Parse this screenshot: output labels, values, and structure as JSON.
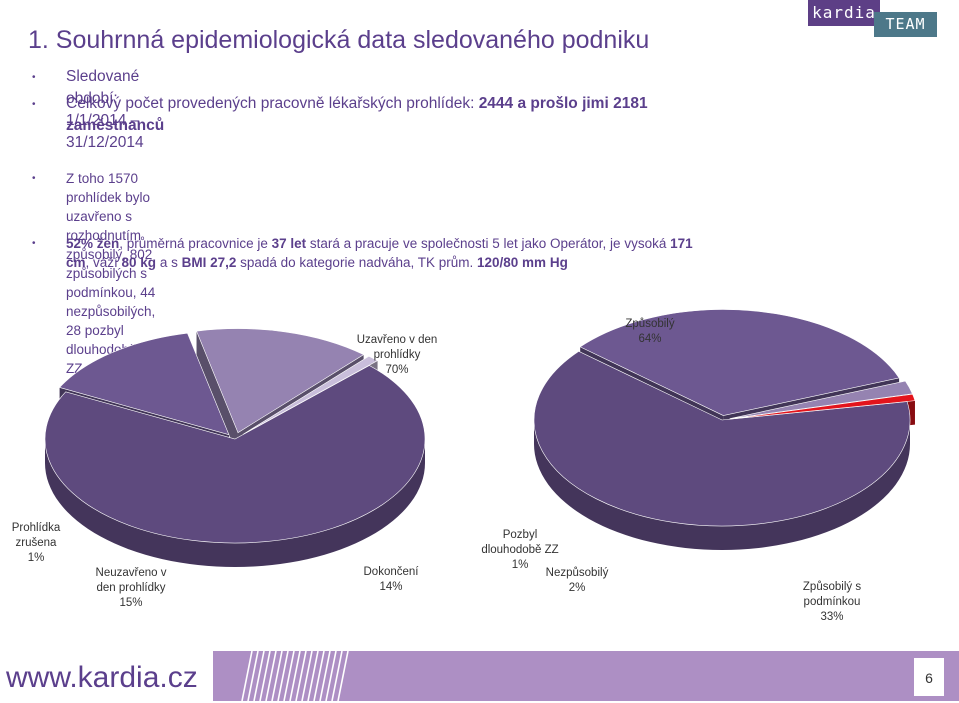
{
  "title": "1. Souhrnná epidemiologická data sledovaného podniku",
  "logo": {
    "left": "kardia",
    "right": "TEAM"
  },
  "bullets": {
    "b1": "Sledované období: 1/1/2014 – 31/12/2014",
    "b2_a": "Celkový počet provedených pracovně lékařských prohlídek: ",
    "b2_bold1": "2444 a prošlo jimi 2181",
    "b2_bold2": "zaměstnanců",
    "b3_line1": "Z toho 1570 prohlídek bylo uzavřeno s rozhodnutím způsobilý, 802 způsobilých s podmínkou, 44",
    "b3_line2": "nezpůsobilých, 28 pozbyl dlouhodobě ZZ",
    "b4_bold1": "52% žen",
    "b4_t1": ", průměrná pracovnice je ",
    "b4_bold2": "37 let",
    "b4_t2": " stará a pracuje ve společnosti 5 let jako Operátor, je vysoká ",
    "b4_bold3": "171",
    "b4_bold4": "cm",
    "b4_t3": ", váží ",
    "b4_bold5": "80 kg",
    "b4_t4": " a s ",
    "b4_bold6": "BMI 27,2",
    "b4_t5": " spadá do kategorie nadváha, TK prům. ",
    "b4_bold7": "120/80 mm Hg"
  },
  "chart_data": [
    {
      "type": "pie",
      "style": "3d",
      "slices": [
        {
          "label_lines": [
            "Uzavřeno v den",
            "prohlídky"
          ],
          "pct_label": "70%",
          "value": 70,
          "color": "#5e4a7e"
        },
        {
          "label_lines": [
            "Dokončení"
          ],
          "pct_label": "14%",
          "value": 14,
          "color": "#6d5891"
        },
        {
          "label_lines": [
            "Neuzavřeno v",
            "den prohlídky"
          ],
          "pct_label": "15%",
          "value": 15,
          "color": "#9583b1"
        },
        {
          "label_lines": [
            "Prohlídka",
            "zrušena"
          ],
          "pct_label": "1%",
          "value": 1,
          "color": "#c9bedb"
        }
      ]
    },
    {
      "type": "pie",
      "style": "3d",
      "slices": [
        {
          "label_lines": [
            "Způsobilý"
          ],
          "pct_label": "64%",
          "value": 64,
          "color": "#5e4a7e"
        },
        {
          "label_lines": [
            "Způsobilý s",
            "podmínkou"
          ],
          "pct_label": "33%",
          "value": 33,
          "color": "#6d5891"
        },
        {
          "label_lines": [
            "Nezpůsobilý"
          ],
          "pct_label": "2%",
          "value": 2,
          "color": "#9583b1"
        },
        {
          "label_lines": [
            "Pozbyl",
            "dlouhodobě ZZ"
          ],
          "pct_label": "1%",
          "value": 1,
          "color": "#e3141c"
        }
      ]
    }
  ],
  "footer": {
    "url": "www.kardia.cz",
    "page": "6"
  }
}
